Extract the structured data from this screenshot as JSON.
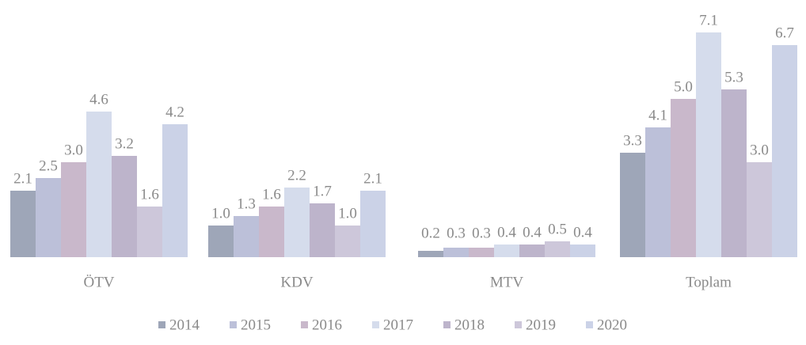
{
  "chart_data": {
    "type": "bar",
    "categories": [
      "ÖTV",
      "KDV",
      "MTV",
      "Toplam"
    ],
    "series": [
      {
        "name": "2014",
        "color": "#9ea6b8",
        "values": [
          2.1,
          1.0,
          0.2,
          3.3
        ],
        "value_labels": [
          "2.1",
          "1.0",
          "0.2",
          "3.3"
        ]
      },
      {
        "name": "2015",
        "color": "#bcc0d9",
        "values": [
          2.5,
          1.3,
          0.3,
          4.1
        ],
        "value_labels": [
          "2.5",
          "1.3",
          "0.3",
          "4.1"
        ]
      },
      {
        "name": "2016",
        "color": "#c9b8cb",
        "values": [
          3.0,
          1.6,
          0.3,
          5.0
        ],
        "value_labels": [
          "3.0",
          "1.6",
          "0.3",
          "5.0"
        ]
      },
      {
        "name": "2017",
        "color": "#d5dcec",
        "values": [
          4.6,
          2.2,
          0.4,
          7.1
        ],
        "value_labels": [
          "4.6",
          "2.2",
          "0.4",
          "7.1"
        ]
      },
      {
        "name": "2018",
        "color": "#bdb4cb",
        "values": [
          3.2,
          1.7,
          0.4,
          5.3
        ],
        "value_labels": [
          "3.2",
          "1.7",
          "0.4",
          "5.3"
        ]
      },
      {
        "name": "2019",
        "color": "#cdc7da",
        "values": [
          1.6,
          1.0,
          0.5,
          3.0
        ],
        "value_labels": [
          "1.6",
          "1.0",
          "0.5",
          "3.0"
        ]
      },
      {
        "name": "2020",
        "color": "#cbd2e7",
        "values": [
          4.2,
          2.1,
          0.4,
          6.7
        ],
        "value_labels": [
          "4.2",
          "2.1",
          "0.4",
          "6.7"
        ]
      }
    ]
  }
}
